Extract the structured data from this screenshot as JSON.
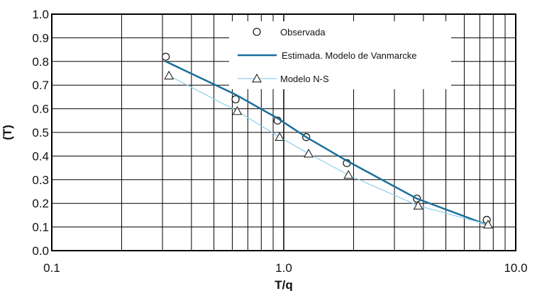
{
  "chart_data": {
    "type": "line",
    "x_scale": "log",
    "xlim": [
      0.1,
      10.0
    ],
    "ylim": [
      0.0,
      1.0
    ],
    "xlabel": "T/q",
    "ylabel": "(T)",
    "x_tick_labels": [
      "0.1",
      "1.0",
      "10.0"
    ],
    "y_tick_labels": [
      "0.0",
      "0.1",
      "0.2",
      "0.3",
      "0.4",
      "0.5",
      "0.6",
      "0.7",
      "0.8",
      "0.9",
      "1.0"
    ],
    "grid": true,
    "legend_position": "top-right",
    "series": [
      {
        "name": "Observada",
        "style": "markers-circle",
        "color": "#222222",
        "x": [
          0.31,
          0.62,
          0.94,
          1.25,
          1.87,
          3.75,
          7.5
        ],
        "y": [
          0.82,
          0.64,
          0.55,
          0.48,
          0.37,
          0.22,
          0.13
        ]
      },
      {
        "name": "Estimada. Modelo de Vanmarcke",
        "style": "line",
        "color": "#1a6e9a",
        "x": [
          0.31,
          0.62,
          0.94,
          1.25,
          1.87,
          3.75,
          7.5
        ],
        "y": [
          0.8,
          0.66,
          0.56,
          0.48,
          0.38,
          0.22,
          0.11
        ]
      },
      {
        "name": "Modelo N-S",
        "style": "line-markers-triangle",
        "color": "#8fd0ea",
        "x": [
          0.32,
          0.63,
          0.96,
          1.28,
          1.9,
          3.8,
          7.6
        ],
        "y": [
          0.74,
          0.59,
          0.48,
          0.41,
          0.32,
          0.19,
          0.11
        ]
      }
    ]
  }
}
